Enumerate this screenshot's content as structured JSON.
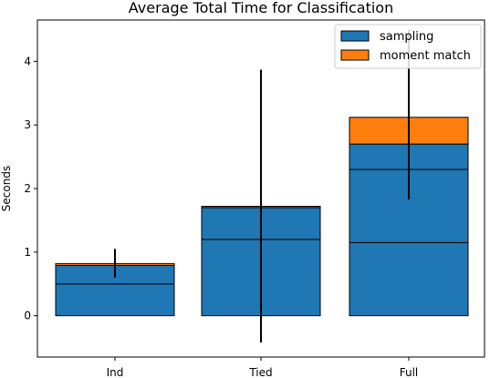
{
  "chart_data": {
    "type": "bar",
    "stacked": true,
    "title": "Average Total Time for Classification",
    "xlabel": "",
    "ylabel": "Seconds",
    "ylim": [
      -0.65,
      4.65
    ],
    "yticks": [
      "0",
      "1",
      "2",
      "3",
      "4"
    ],
    "categories": [
      "Ind",
      "Tied",
      "Full"
    ],
    "series": [
      {
        "name": "sampling",
        "color": "#1f77b4",
        "segments": [
          [
            0.5,
            0.29
          ],
          [
            1.2,
            0.5
          ],
          [
            1.15,
            1.15,
            0.4
          ]
        ],
        "totals": [
          0.79,
          1.7,
          2.7
        ]
      },
      {
        "name": "moment match",
        "color": "#ff7f0e",
        "values": [
          0.03,
          0.02,
          0.42
        ]
      }
    ],
    "error_bars": [
      {
        "category": "Ind",
        "low": 0.6,
        "high": 1.05
      },
      {
        "category": "Tied",
        "low": -0.42,
        "high": 3.87
      },
      {
        "category": "Full",
        "low": 1.83,
        "high": 4.5
      }
    ],
    "legend_position": "top-right",
    "grid": false
  }
}
